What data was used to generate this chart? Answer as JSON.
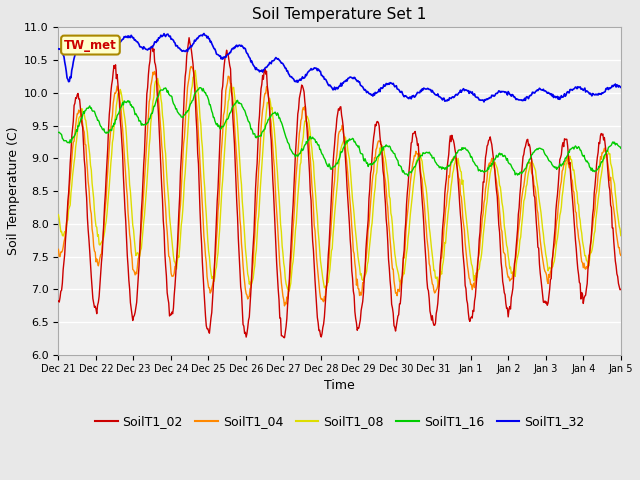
{
  "title": "Soil Temperature Set 1",
  "xlabel": "Time",
  "ylabel": "Soil Temperature (C)",
  "ylim": [
    6.0,
    11.0
  ],
  "series_colors": {
    "SoilT1_02": "#cc0000",
    "SoilT1_04": "#ff8800",
    "SoilT1_08": "#dddd00",
    "SoilT1_16": "#00cc00",
    "SoilT1_32": "#0000ee"
  },
  "bg_color": "#e8e8e8",
  "plot_bg_color": "#f0f0f0",
  "annotation_label": "TW_met",
  "annotation_color": "#cc0000",
  "annotation_bg": "#ffffcc",
  "annotation_border": "#aa8800",
  "x_tick_labels": [
    "Dec 21",
    "Dec 22",
    "Dec 23",
    "Dec 24",
    "Dec 25",
    "Dec 26",
    "Dec 27",
    "Dec 28",
    "Dec 29",
    "Dec 30",
    "Dec 31",
    "Jan 1",
    "Jan 2",
    "Jan 3",
    "Jan 4",
    "Jan 5"
  ],
  "yticks": [
    6.0,
    6.5,
    7.0,
    7.5,
    8.0,
    8.5,
    9.0,
    9.5,
    10.0,
    10.5,
    11.0
  ],
  "figsize": [
    6.4,
    4.8
  ],
  "dpi": 100
}
